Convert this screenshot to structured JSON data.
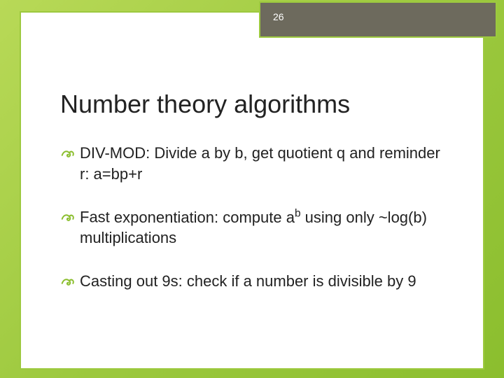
{
  "page_number": "26",
  "title": "Number theory algorithms",
  "bullets": [
    {
      "prefix": "DIV-MOD: ",
      "rest": "Divide a by b, get quotient q and reminder r: a=bp+r"
    },
    {
      "prefix": "Fast ",
      "rest_html": "exponentiation: compute a<sup>b</sup> using only ~log(b) multiplications"
    },
    {
      "prefix": "Casting ",
      "rest": "out 9s: check if a number is divisible by 9"
    }
  ],
  "colors": {
    "accent": "#9dc93f",
    "header_bar": "#6d6a5d",
    "text": "#222222",
    "bg_white": "#ffffff",
    "bullet_icon": "#8bbe2e"
  },
  "fonts": {
    "title_size": 36,
    "body_size": 22
  }
}
